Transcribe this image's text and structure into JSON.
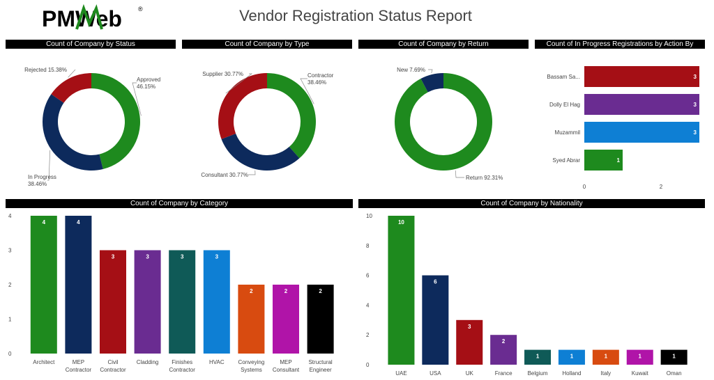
{
  "header": {
    "brand": "PMWeb",
    "registered_mark": "®",
    "title": "Vendor Registration Status Report"
  },
  "colors": {
    "green": "#1e8a1e",
    "red": "#a50f15",
    "navy": "#0d2a5c",
    "purple": "#6a2c91",
    "teal": "#0f5a57",
    "blue": "#0e7fd4",
    "orange": "#d84b10",
    "magenta": "#b014a8",
    "black": "#000000"
  },
  "chart_data": [
    {
      "id": "status",
      "type": "pie",
      "title": "Count of Company by Status",
      "slices": [
        {
          "label": "Approved",
          "percent_label": "46.15%",
          "value": 46.15,
          "color": "#1e8a1e"
        },
        {
          "label": "In Progress",
          "percent_label": "38.46%",
          "value": 38.46,
          "color": "#0d2a5c"
        },
        {
          "label": "Rejected",
          "percent_label": "15.38%",
          "value": 15.38,
          "color": "#a50f15"
        }
      ]
    },
    {
      "id": "type",
      "type": "pie",
      "title": "Count of Company by Type",
      "slices": [
        {
          "label": "Contractor",
          "percent_label": "38.46%",
          "value": 38.46,
          "color": "#1e8a1e"
        },
        {
          "label": "Consultant",
          "percent_label": "30.77%",
          "value": 30.77,
          "color": "#0d2a5c"
        },
        {
          "label": "Supplier",
          "percent_label": "30.77%",
          "value": 30.77,
          "color": "#a50f15"
        }
      ]
    },
    {
      "id": "return",
      "type": "pie",
      "title": "Count of Company by Return",
      "slices": [
        {
          "label": "Return",
          "percent_label": "92.31%",
          "value": 92.31,
          "color": "#1e8a1e"
        },
        {
          "label": "New",
          "percent_label": "7.69%",
          "value": 7.69,
          "color": "#0d2a5c"
        }
      ]
    },
    {
      "id": "actionby",
      "type": "bar",
      "orientation": "horizontal",
      "title": "Count of In Progress Registrations by Action By",
      "categories": [
        "Bassam Sa...",
        "Dolly El Hag",
        "Muzammil",
        "Syed Abrar"
      ],
      "values": [
        3,
        3,
        3,
        1
      ],
      "colors": [
        "#a50f15",
        "#6a2c91",
        "#0e7fd4",
        "#1e8a1e"
      ],
      "xlim": [
        0,
        3
      ],
      "xticks": [
        "0",
        "2"
      ]
    },
    {
      "id": "category",
      "type": "bar",
      "title": "Count of Company by Category",
      "categories": [
        "Architect",
        "MEP Contractor",
        "Civil Contractor",
        "Cladding",
        "Finishes Contractor",
        "HVAC",
        "Conveying Systems",
        "MEP Consultant",
        "Structural Engineer"
      ],
      "values": [
        4,
        4,
        3,
        3,
        3,
        3,
        2,
        2,
        2
      ],
      "colors": [
        "#1e8a1e",
        "#0d2a5c",
        "#a50f15",
        "#6a2c91",
        "#0f5a57",
        "#0e7fd4",
        "#d84b10",
        "#b014a8",
        "#000000"
      ],
      "ylim": [
        0,
        4
      ],
      "yticks": [
        "0",
        "1",
        "2",
        "3",
        "4"
      ]
    },
    {
      "id": "nationality",
      "type": "bar",
      "title": "Count of Company by Nationality",
      "categories": [
        "UAE",
        "USA",
        "UK",
        "France",
        "Belgium",
        "Holland",
        "Italy",
        "Kuwait",
        "Oman"
      ],
      "values": [
        10,
        6,
        3,
        2,
        1,
        1,
        1,
        1,
        1
      ],
      "colors": [
        "#1e8a1e",
        "#0d2a5c",
        "#a50f15",
        "#6a2c91",
        "#0f5a57",
        "#0e7fd4",
        "#d84b10",
        "#b014a8",
        "#000000"
      ],
      "ylim": [
        0,
        10
      ],
      "yticks": [
        "0",
        "2",
        "4",
        "6",
        "8",
        "10"
      ]
    }
  ]
}
